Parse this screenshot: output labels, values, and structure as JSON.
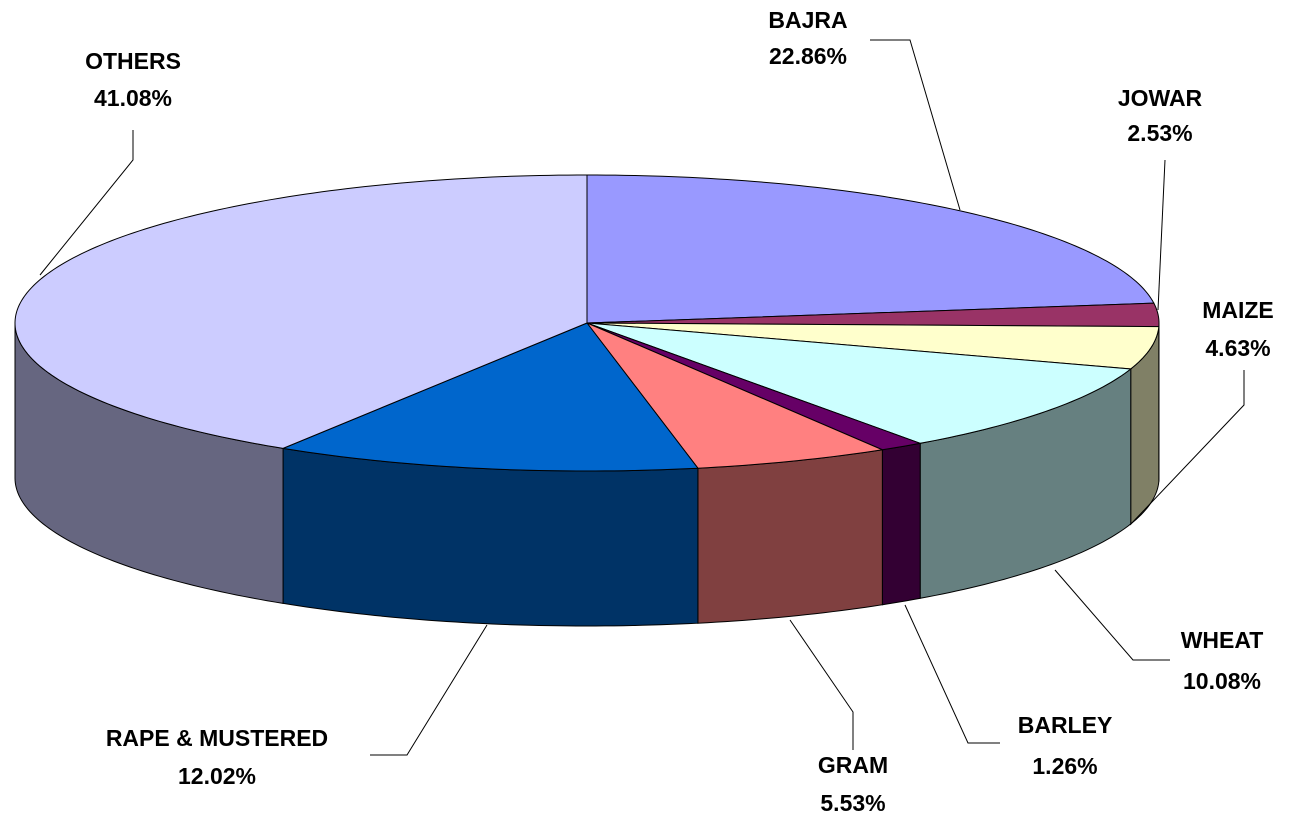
{
  "chart_data": {
    "type": "pie3d",
    "categories": [
      "BAJRA",
      "JOWAR",
      "MAIZE",
      "WHEAT",
      "BARLEY",
      "GRAM",
      "RAPE & MUSTERED",
      "OTHERS"
    ],
    "values": [
      22.86,
      2.53,
      4.63,
      10.08,
      1.26,
      5.53,
      12.02,
      41.08
    ],
    "value_labels": [
      "22.86%",
      "2.53%",
      "4.63%",
      "10.08%",
      "1.26%",
      "5.53%",
      "12.02%",
      "41.08%"
    ],
    "colors": [
      "#9999ff",
      "#993366",
      "#ffffcc",
      "#ccffff",
      "#660066",
      "#ff8080",
      "#0066cc",
      "#ccccff"
    ]
  }
}
